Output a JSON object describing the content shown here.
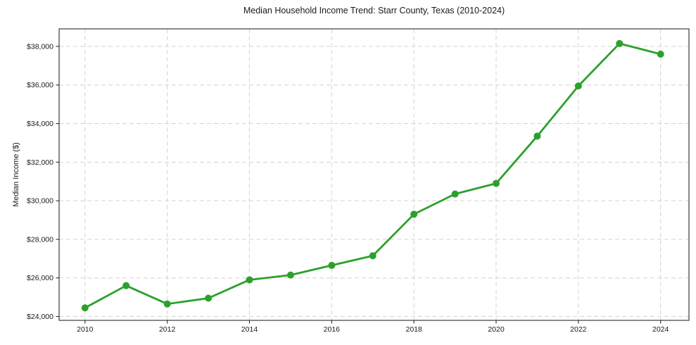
{
  "chart_data": {
    "type": "line",
    "title": "Median Household Income Trend: Starr County, Texas (2010-2024)",
    "xlabel": "",
    "ylabel": "Median Income ($)",
    "x": [
      2010,
      2011,
      2012,
      2013,
      2014,
      2015,
      2016,
      2017,
      2018,
      2019,
      2020,
      2021,
      2022,
      2023,
      2024
    ],
    "series": [
      {
        "name": "Median Household Income",
        "color": "#2ca02c",
        "marker": "circle",
        "values": [
          24450,
          25600,
          24650,
          24950,
          25900,
          26150,
          26650,
          27150,
          29300,
          30350,
          30900,
          33350,
          35950,
          38150,
          37600
        ]
      }
    ],
    "x_ticks": [
      2010,
      2012,
      2014,
      2016,
      2018,
      2020,
      2022,
      2024
    ],
    "y_ticks": [
      24000,
      26000,
      28000,
      30000,
      32000,
      34000,
      36000,
      38000
    ],
    "y_tick_prefix": "$",
    "xlim": [
      2009.37,
      2024.69
    ],
    "ylim": [
      23800,
      38910
    ],
    "grid": true,
    "legend": "none",
    "background_color": "#ffffff",
    "grid_color": "#d3d3d3",
    "axis_color": "#2b2b2b"
  }
}
